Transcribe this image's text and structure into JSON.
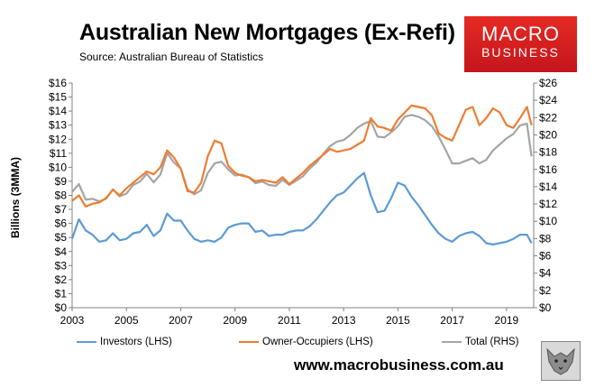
{
  "page": {
    "title": "Australian New Mortgages (Ex-Refi)",
    "source": "Source: Australian Bureau of Statistics",
    "logo_line1": "MACRO",
    "logo_line2": "BUSINESS",
    "website": "www.macrobusiness.com.au",
    "logo_icon": "wolf-icon"
  },
  "chart_data": {
    "type": "line",
    "title": "Australian New Mortgages (Ex-Refi)",
    "ylabel": "Billions (3MMA)",
    "xlim": [
      2003,
      2020
    ],
    "ylim": [
      0,
      16
    ],
    "y2lim": [
      0,
      26
    ],
    "x_ticks": [
      2003,
      2005,
      2007,
      2009,
      2011,
      2013,
      2015,
      2017,
      2019
    ],
    "y_ticks": [
      0,
      1,
      2,
      3,
      4,
      5,
      6,
      7,
      8,
      9,
      10,
      11,
      12,
      13,
      14,
      15,
      16
    ],
    "y2_ticks": [
      0,
      2,
      4,
      6,
      8,
      10,
      12,
      14,
      16,
      18,
      20,
      22,
      24,
      26
    ],
    "y_tick_labels": [
      "$0",
      "$1",
      "$2",
      "$3",
      "$4",
      "$5",
      "$6",
      "$7",
      "$8",
      "$9",
      "$10",
      "$11",
      "$12",
      "$13",
      "$14",
      "$15",
      "$16"
    ],
    "y2_tick_labels": [
      "$0",
      "$2",
      "$4",
      "$6",
      "$8",
      "$10",
      "$12",
      "$14",
      "$16",
      "$18",
      "$20",
      "$22",
      "$24",
      "$26"
    ],
    "grid": false,
    "legend_position": "bottom",
    "series": [
      {
        "name": "Investors (LHS)",
        "axis": "left",
        "color": "#5b9bd5",
        "x": [
          2003.0,
          2003.25,
          2003.5,
          2003.75,
          2004.0,
          2004.25,
          2004.5,
          2004.75,
          2005.0,
          2005.25,
          2005.5,
          2005.75,
          2006.0,
          2006.25,
          2006.5,
          2006.75,
          2007.0,
          2007.25,
          2007.5,
          2007.75,
          2008.0,
          2008.25,
          2008.5,
          2008.75,
          2009.0,
          2009.25,
          2009.5,
          2009.75,
          2010.0,
          2010.25,
          2010.5,
          2010.75,
          2011.0,
          2011.25,
          2011.5,
          2011.75,
          2012.0,
          2012.25,
          2012.5,
          2012.75,
          2013.0,
          2013.25,
          2013.5,
          2013.75,
          2014.0,
          2014.25,
          2014.5,
          2014.75,
          2015.0,
          2015.25,
          2015.5,
          2015.75,
          2016.0,
          2016.25,
          2016.5,
          2016.75,
          2017.0,
          2017.25,
          2017.5,
          2017.75,
          2018.0,
          2018.25,
          2018.5,
          2018.75,
          2019.0,
          2019.25,
          2019.5,
          2019.75,
          2019.92
        ],
        "values": [
          4.9,
          6.3,
          5.5,
          5.2,
          4.7,
          4.8,
          5.3,
          4.8,
          4.9,
          5.3,
          5.4,
          5.9,
          5.1,
          5.5,
          6.7,
          6.2,
          6.2,
          5.5,
          4.9,
          4.7,
          4.8,
          4.7,
          5.0,
          5.7,
          5.9,
          6.0,
          6.0,
          5.4,
          5.5,
          5.1,
          5.2,
          5.2,
          5.4,
          5.5,
          5.5,
          5.8,
          6.3,
          6.9,
          7.5,
          8.0,
          8.2,
          8.7,
          9.2,
          9.6,
          8.0,
          6.8,
          6.9,
          7.8,
          8.9,
          8.7,
          7.9,
          7.3,
          6.6,
          5.9,
          5.3,
          4.9,
          4.7,
          5.1,
          5.3,
          5.4,
          5.1,
          4.6,
          4.5,
          4.6,
          4.7,
          4.9,
          5.2,
          5.2,
          4.6
        ]
      },
      {
        "name": "Owner-Occupiers (LHS)",
        "axis": "left",
        "color": "#ed7d31",
        "x": [
          2003.0,
          2003.25,
          2003.5,
          2003.75,
          2004.0,
          2004.25,
          2004.5,
          2004.75,
          2005.0,
          2005.25,
          2005.5,
          2005.75,
          2006.0,
          2006.25,
          2006.5,
          2006.75,
          2007.0,
          2007.25,
          2007.5,
          2007.75,
          2008.0,
          2008.25,
          2008.5,
          2008.75,
          2009.0,
          2009.25,
          2009.5,
          2009.75,
          2010.0,
          2010.25,
          2010.5,
          2010.75,
          2011.0,
          2011.25,
          2011.5,
          2011.75,
          2012.0,
          2012.25,
          2012.5,
          2012.75,
          2013.0,
          2013.25,
          2013.5,
          2013.75,
          2014.0,
          2014.25,
          2014.5,
          2014.75,
          2015.0,
          2015.25,
          2015.5,
          2015.75,
          2016.0,
          2016.25,
          2016.5,
          2016.75,
          2017.0,
          2017.25,
          2017.5,
          2017.75,
          2018.0,
          2018.25,
          2018.5,
          2018.75,
          2019.0,
          2019.25,
          2019.5,
          2019.75,
          2019.92
        ],
        "values": [
          7.6,
          8.0,
          7.2,
          7.4,
          7.5,
          7.8,
          8.4,
          8.0,
          8.5,
          8.9,
          9.3,
          9.7,
          9.5,
          10.0,
          11.2,
          10.7,
          9.9,
          8.3,
          8.2,
          8.9,
          10.8,
          11.9,
          11.7,
          10.1,
          9.6,
          9.4,
          9.3,
          9.0,
          9.1,
          9.0,
          8.9,
          9.3,
          8.8,
          9.2,
          9.6,
          10.1,
          10.5,
          10.9,
          11.3,
          11.1,
          11.2,
          11.3,
          11.6,
          11.9,
          13.5,
          12.9,
          12.8,
          12.6,
          13.4,
          13.9,
          14.4,
          14.3,
          14.2,
          13.7,
          12.4,
          12.1,
          11.9,
          13.0,
          14.1,
          14.3,
          13.0,
          13.5,
          14.2,
          13.9,
          13.0,
          12.8,
          13.5,
          14.3,
          13.0
        ]
      },
      {
        "name": "Total (RHS)",
        "axis": "right",
        "color": "#a5a5a5",
        "x": [
          2003.0,
          2003.25,
          2003.5,
          2003.75,
          2004.0,
          2004.25,
          2004.5,
          2004.75,
          2005.0,
          2005.25,
          2005.5,
          2005.75,
          2006.0,
          2006.25,
          2006.5,
          2006.75,
          2007.0,
          2007.25,
          2007.5,
          2007.75,
          2008.0,
          2008.25,
          2008.5,
          2008.75,
          2009.0,
          2009.25,
          2009.5,
          2009.75,
          2010.0,
          2010.25,
          2010.5,
          2010.75,
          2011.0,
          2011.25,
          2011.5,
          2011.75,
          2012.0,
          2012.25,
          2012.5,
          2012.75,
          2013.0,
          2013.25,
          2013.5,
          2013.75,
          2014.0,
          2014.25,
          2014.5,
          2014.75,
          2015.0,
          2015.25,
          2015.5,
          2015.75,
          2016.0,
          2016.25,
          2016.5,
          2016.75,
          2017.0,
          2017.25,
          2017.5,
          2017.75,
          2018.0,
          2018.25,
          2018.5,
          2018.75,
          2019.0,
          2019.25,
          2019.5,
          2019.75,
          2019.92
        ],
        "values": [
          13.4,
          14.3,
          12.5,
          12.6,
          12.3,
          12.6,
          13.7,
          12.9,
          13.2,
          14.2,
          14.6,
          15.5,
          14.5,
          15.4,
          17.9,
          16.8,
          16.1,
          13.7,
          13.1,
          13.6,
          15.6,
          16.7,
          16.9,
          16.0,
          15.3,
          15.4,
          15.1,
          14.4,
          14.6,
          14.2,
          14.1,
          14.8,
          14.2,
          14.7,
          15.2,
          16.1,
          16.8,
          17.8,
          18.7,
          19.2,
          19.4,
          20.0,
          20.8,
          21.3,
          21.6,
          19.8,
          19.7,
          20.3,
          21.0,
          22.1,
          22.3,
          22.1,
          21.7,
          21.0,
          19.8,
          18.3,
          16.7,
          16.7,
          17.0,
          17.3,
          16.7,
          17.1,
          18.2,
          18.9,
          19.6,
          20.1,
          21.1,
          21.3,
          17.5
        ]
      }
    ]
  }
}
